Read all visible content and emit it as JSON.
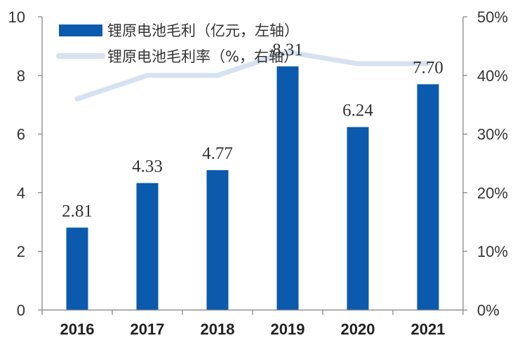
{
  "chart_data": {
    "type": "bar",
    "categories": [
      "2016",
      "2017",
      "2018",
      "2019",
      "2020",
      "2021"
    ],
    "series": [
      {
        "name": "锂原电池毛利（亿元，左轴）",
        "type": "bar",
        "axis": "left",
        "values": [
          2.81,
          4.33,
          4.77,
          8.31,
          6.24,
          7.7
        ],
        "labels": [
          "2.81",
          "4.33",
          "4.77",
          "8.31",
          "6.24",
          "7.70"
        ],
        "color": "#0b5aad"
      },
      {
        "name": "锂原电池毛利率（%，右轴）",
        "type": "line",
        "axis": "right",
        "values": [
          36,
          40,
          40,
          44,
          42,
          42
        ],
        "color": "#d6e1f1"
      }
    ],
    "y_left": {
      "min": 0,
      "max": 10,
      "ticks": [
        "0",
        "2",
        "4",
        "6",
        "8",
        "10"
      ]
    },
    "y_right": {
      "min": 0,
      "max": 50,
      "ticks": [
        "0%",
        "10%",
        "20%",
        "30%",
        "40%",
        "50%"
      ]
    },
    "legend_position": "top-left",
    "grid": false
  }
}
